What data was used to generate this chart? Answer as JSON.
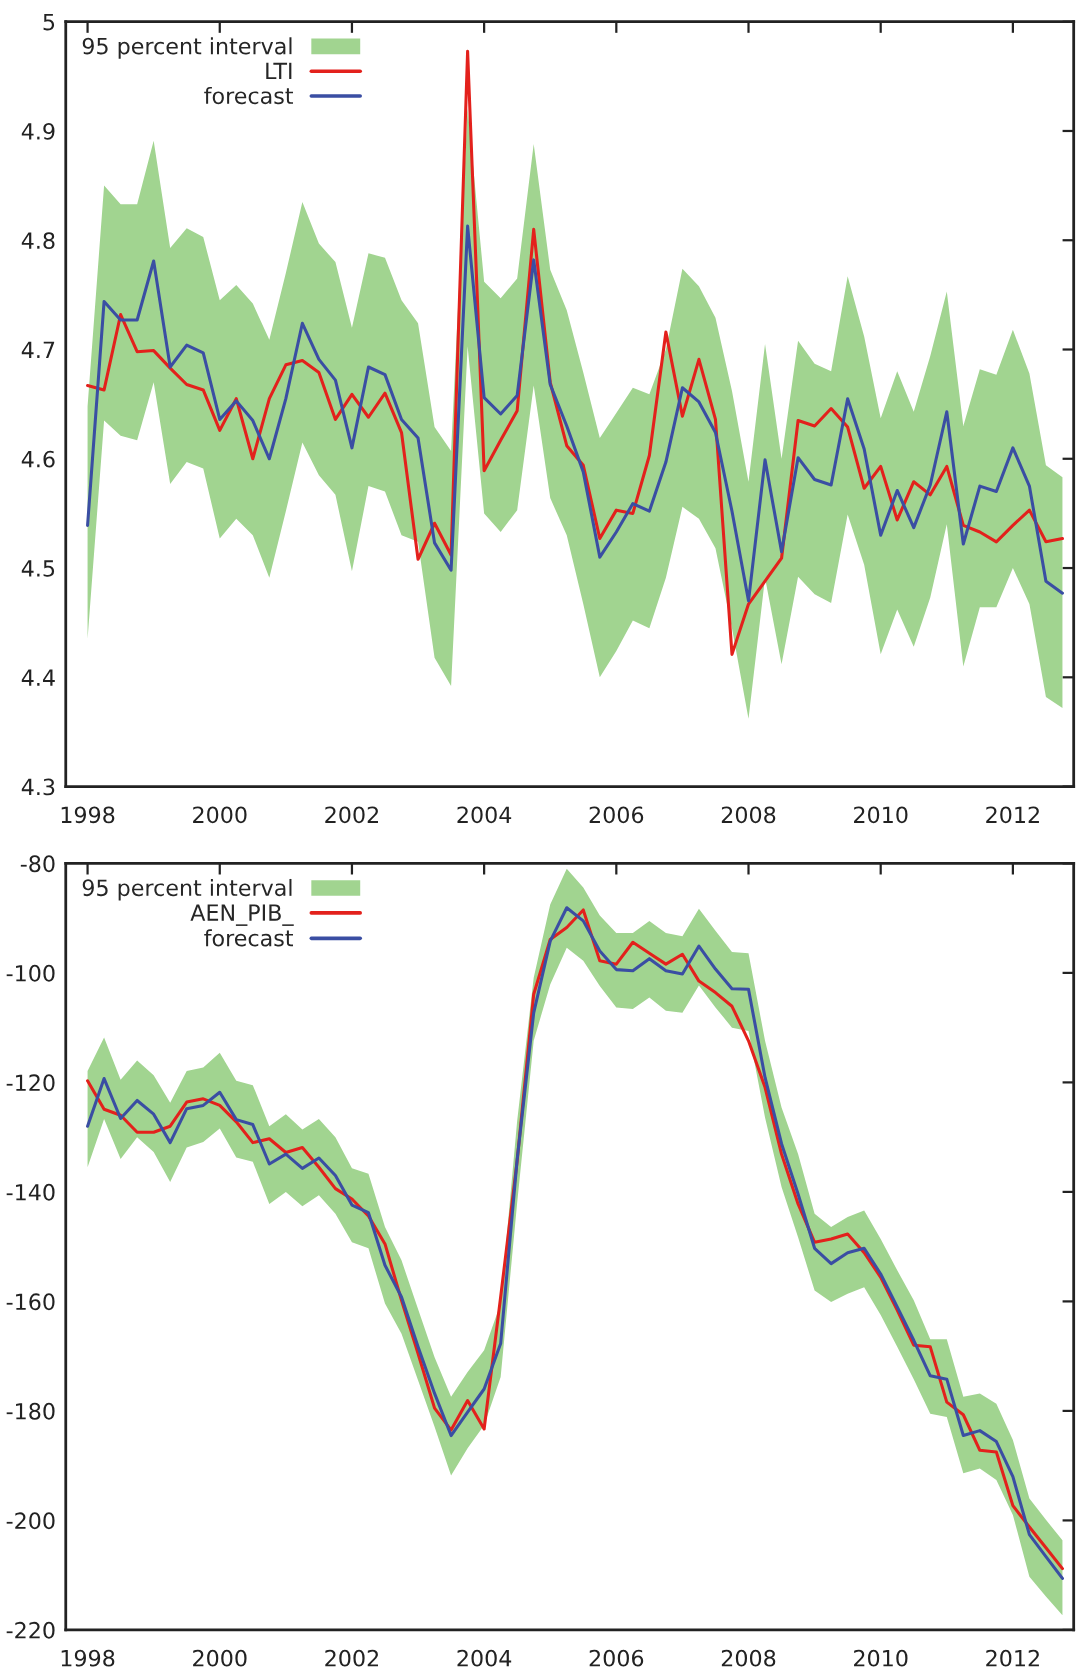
{
  "chart_data": [
    {
      "type": "line",
      "legend": "top left",
      "x": [
        1998,
        1998.25,
        1998.5,
        1998.75,
        1999,
        1999.25,
        1999.5,
        1999.75,
        2000,
        2000.25,
        2000.5,
        2000.75,
        2001,
        2001.25,
        2001.5,
        2001.75,
        2002,
        2002.25,
        2002.5,
        2002.75,
        2003,
        2003.25,
        2003.5,
        2003.75,
        2004,
        2004.25,
        2004.5,
        2004.75,
        2005,
        2005.25,
        2005.5,
        2005.75,
        2006,
        2006.25,
        2006.5,
        2006.75,
        2007,
        2007.25,
        2007.5,
        2007.75,
        2008,
        2008.25,
        2008.5,
        2008.75,
        2009,
        2009.25,
        2009.5,
        2009.75,
        2010,
        2010.25,
        2010.5,
        2010.75,
        2011,
        2011.25,
        2011.5,
        2011.75,
        2012,
        2012.25,
        2012.5,
        2012.75
      ],
      "xlim": [
        1997.67,
        2012.92
      ],
      "xticks": [
        1998,
        2000,
        2002,
        2004,
        2006,
        2008,
        2010,
        2012
      ],
      "ylim": [
        4.3,
        5
      ],
      "yticks": [
        4.3,
        4.4,
        4.5,
        4.6,
        4.7,
        4.8,
        4.9,
        5
      ],
      "series": [
        {
          "name": "95 percent interval",
          "type": "area",
          "color": "#a1d490",
          "values": [
            null,
            null,
            null,
            null,
            null,
            null,
            null,
            null,
            null,
            null,
            null,
            null,
            null,
            null,
            null,
            null,
            null,
            null,
            null,
            null,
            null,
            null,
            null,
            null,
            null,
            null,
            null,
            null,
            null,
            null,
            null,
            null,
            null,
            null,
            null,
            null,
            null,
            null,
            null,
            null,
            null,
            null,
            null,
            null,
            null,
            null,
            null,
            null,
            null,
            null,
            null,
            null,
            null,
            null,
            null,
            null,
            null,
            null,
            null,
            null
          ],
          "upper": [
            4.648,
            4.85,
            4.833,
            4.833,
            4.891,
            4.793,
            4.811,
            4.803,
            4.745,
            4.759,
            4.742,
            4.709,
            4.77,
            4.835,
            4.797,
            4.78,
            4.72,
            4.788,
            4.784,
            4.745,
            4.724,
            4.629,
            4.607,
            4.921,
            4.762,
            4.747,
            4.765,
            4.888,
            4.773,
            4.736,
            4.679,
            4.619,
            4.642,
            4.665,
            4.659,
            4.7,
            4.774,
            4.758,
            4.729,
            4.662,
            4.579,
            4.705,
            4.6,
            4.708,
            4.687,
            4.68,
            4.767,
            4.712,
            4.637,
            4.68,
            4.643,
            4.694,
            4.753,
            4.63,
            4.682,
            4.677,
            4.718,
            4.678,
            4.594,
            4.583
          ],
          "lower": [
            4.435,
            4.635,
            4.621,
            4.617,
            4.67,
            4.577,
            4.597,
            4.591,
            4.527,
            4.545,
            4.53,
            4.491,
            4.552,
            4.615,
            4.585,
            4.567,
            4.497,
            4.575,
            4.57,
            4.53,
            4.524,
            4.418,
            4.392,
            4.703,
            4.55,
            4.533,
            4.553,
            4.667,
            4.564,
            4.53,
            4.467,
            4.4,
            4.424,
            4.452,
            4.445,
            4.491,
            4.556,
            4.545,
            4.518,
            4.445,
            4.362,
            4.491,
            4.412,
            4.492,
            4.476,
            4.468,
            4.549,
            4.503,
            4.421,
            4.462,
            4.428,
            4.473,
            4.54,
            4.41,
            4.464,
            4.464,
            4.5,
            4.467,
            4.382,
            4.372
          ]
        },
        {
          "name": "LTI",
          "color": "#e3211c",
          "values": [
            4.667,
            4.663,
            4.732,
            4.698,
            4.699,
            4.683,
            4.668,
            4.663,
            4.626,
            4.655,
            4.6,
            4.655,
            4.686,
            4.69,
            4.679,
            4.636,
            4.659,
            4.638,
            4.66,
            4.624,
            4.508,
            4.541,
            4.512,
            4.973,
            4.589,
            4.617,
            4.644,
            4.81,
            4.67,
            4.612,
            4.594,
            4.527,
            4.553,
            4.55,
            4.603,
            4.716,
            4.639,
            4.691,
            4.636,
            4.421,
            4.467,
            4.488,
            4.509,
            4.635,
            4.63,
            4.646,
            4.629,
            4.573,
            4.593,
            4.544,
            4.579,
            4.567,
            4.593,
            4.539,
            4.533,
            4.524,
            4.539,
            4.553,
            4.524,
            4.527
          ]
        },
        {
          "name": "forecast",
          "color": "#3a4ea3",
          "values": [
            4.539,
            4.744,
            4.727,
            4.727,
            4.781,
            4.684,
            4.704,
            4.697,
            4.636,
            4.653,
            4.635,
            4.6,
            4.655,
            4.724,
            4.691,
            4.672,
            4.61,
            4.684,
            4.677,
            4.636,
            4.619,
            4.523,
            4.498,
            4.813,
            4.656,
            4.641,
            4.658,
            4.782,
            4.668,
            4.63,
            4.588,
            4.51,
            4.533,
            4.559,
            4.552,
            4.597,
            4.665,
            4.652,
            4.624,
            4.552,
            4.47,
            4.599,
            4.515,
            4.601,
            4.581,
            4.576,
            4.655,
            4.609,
            4.53,
            4.571,
            4.537,
            4.576,
            4.643,
            4.522,
            4.575,
            4.57,
            4.61,
            4.575,
            4.488,
            4.477
          ]
        }
      ]
    },
    {
      "type": "line",
      "legend": "top left",
      "x": [
        1998,
        1998.25,
        1998.5,
        1998.75,
        1999,
        1999.25,
        1999.5,
        1999.75,
        2000,
        2000.25,
        2000.5,
        2000.75,
        2001,
        2001.25,
        2001.5,
        2001.75,
        2002,
        2002.25,
        2002.5,
        2002.75,
        2003,
        2003.25,
        2003.5,
        2003.75,
        2004,
        2004.25,
        2004.5,
        2004.75,
        2005,
        2005.25,
        2005.5,
        2005.75,
        2006,
        2006.25,
        2006.5,
        2006.75,
        2007,
        2007.25,
        2007.5,
        2007.75,
        2008,
        2008.25,
        2008.5,
        2008.75,
        2009,
        2009.25,
        2009.5,
        2009.75,
        2010,
        2010.25,
        2010.5,
        2010.75,
        2011,
        2011.25,
        2011.5,
        2011.75,
        2012,
        2012.25,
        2012.5,
        2012.75
      ],
      "xlim": [
        1997.67,
        2012.92
      ],
      "xticks": [
        1998,
        2000,
        2002,
        2004,
        2006,
        2008,
        2010,
        2012
      ],
      "ylim": [
        -220,
        -80
      ],
      "yticks": [
        -220,
        -200,
        -180,
        -160,
        -140,
        -120,
        -100,
        -80
      ],
      "series": [
        {
          "name": "95 percent interval",
          "type": "area",
          "color": "#a1d490",
          "values": [
            null,
            null,
            null,
            null,
            null,
            null,
            null,
            null,
            null,
            null,
            null,
            null,
            null,
            null,
            null,
            null,
            null,
            null,
            null,
            null,
            null,
            null,
            null,
            null,
            null,
            null,
            null,
            null,
            null,
            null,
            null,
            null,
            null,
            null,
            null,
            null,
            null,
            null,
            null,
            null,
            null,
            null,
            null,
            null,
            null,
            null,
            null,
            null,
            null,
            null,
            null,
            null,
            null,
            null,
            null,
            null,
            null,
            null,
            null,
            null
          ],
          "upper": [
            -117.9,
            -111.8,
            -119.5,
            -116.0,
            -118.7,
            -123.7,
            -117.9,
            -117.3,
            -114.6,
            -119.7,
            -120.5,
            -128.0,
            -125.8,
            -128.6,
            -126.7,
            -130.0,
            -135.7,
            -136.7,
            -146.4,
            -152.5,
            -161.4,
            -170.2,
            -177.4,
            -172.9,
            -168.9,
            -160.4,
            -127.0,
            -100.9,
            -87.5,
            -81.0,
            -84.4,
            -89.5,
            -92.7,
            -92.7,
            -90.5,
            -92.7,
            -93.3,
            -88.3,
            -92.3,
            -96.2,
            -96.4,
            -112.4,
            -124.6,
            -133.1,
            -144.0,
            -146.4,
            -144.6,
            -143.4,
            -148.6,
            -154.3,
            -159.8,
            -166.9,
            -166.9,
            -177.4,
            -176.8,
            -178.7,
            -185.3,
            -196.0,
            -199.9,
            -203.6
          ],
          "lower": [
            -135.5,
            -126.7,
            -134.0,
            -130.0,
            -132.7,
            -138.2,
            -131.9,
            -130.9,
            -128.4,
            -133.7,
            -134.5,
            -142.2,
            -140.0,
            -142.6,
            -140.6,
            -144.0,
            -149.2,
            -150.3,
            -160.4,
            -165.9,
            -174.4,
            -182.9,
            -191.8,
            -186.8,
            -182.6,
            -173.8,
            -142.0,
            -112.4,
            -102.1,
            -95.4,
            -97.8,
            -102.4,
            -106.3,
            -106.6,
            -104.5,
            -106.9,
            -107.3,
            -102.3,
            -106.3,
            -110.0,
            -110.6,
            -126.4,
            -139.1,
            -148.3,
            -158.0,
            -160.1,
            -158.6,
            -157.4,
            -162.5,
            -168.3,
            -174.2,
            -180.5,
            -181.1,
            -191.4,
            -190.5,
            -192.6,
            -199.0,
            -210.3,
            -213.9,
            -217.3
          ]
        },
        {
          "name": "AEN_PIB_",
          "color": "#e3211c",
          "values": [
            -119.7,
            -124.9,
            -126.0,
            -129.1,
            -129.1,
            -128.0,
            -123.6,
            -123.0,
            -124.2,
            -127.2,
            -131.0,
            -130.3,
            -132.8,
            -131.9,
            -135.5,
            -139.4,
            -141.3,
            -144.4,
            -149.5,
            -159.8,
            -169.5,
            -179.5,
            -183.5,
            -178.1,
            -183.3,
            -159.2,
            -134.3,
            -103.9,
            -93.9,
            -91.7,
            -88.5,
            -97.8,
            -98.4,
            -94.4,
            -96.4,
            -98.4,
            -96.6,
            -101.5,
            -103.6,
            -106.1,
            -112.4,
            -120.9,
            -133.1,
            -142.2,
            -149.2,
            -148.6,
            -147.7,
            -151.1,
            -155.6,
            -161.6,
            -168.0,
            -168.3,
            -178.4,
            -180.7,
            -187.2,
            -187.5,
            -197.3,
            -201.2,
            -205.0,
            -208.8
          ]
        },
        {
          "name": "forecast",
          "color": "#3a4ea3",
          "values": [
            -128.0,
            -119.3,
            -126.6,
            -123.3,
            -125.8,
            -131.0,
            -124.8,
            -124.2,
            -121.8,
            -126.8,
            -127.7,
            -134.9,
            -133.1,
            -135.7,
            -133.8,
            -137.0,
            -142.4,
            -143.8,
            -153.4,
            -159.2,
            -168.3,
            -176.8,
            -184.5,
            -180.2,
            -176.0,
            -167.7,
            -134.0,
            -107.3,
            -94.2,
            -88.1,
            -90.5,
            -96.0,
            -99.4,
            -99.6,
            -97.4,
            -99.6,
            -100.2,
            -95.1,
            -99.3,
            -102.9,
            -103.0,
            -119.1,
            -131.2,
            -140.4,
            -150.3,
            -153.1,
            -151.1,
            -150.3,
            -155.0,
            -161.0,
            -167.1,
            -173.6,
            -174.2,
            -184.5,
            -183.6,
            -185.6,
            -192.0,
            -202.6,
            -206.6,
            -210.6
          ]
        }
      ]
    }
  ]
}
